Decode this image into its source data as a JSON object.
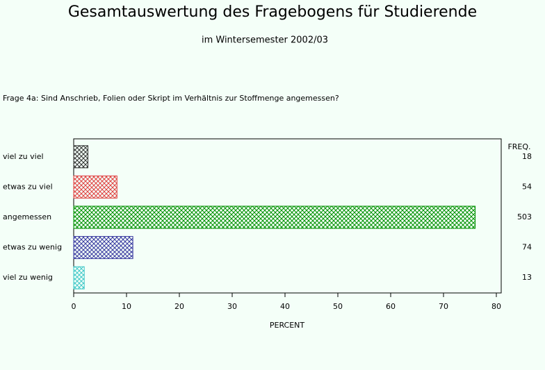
{
  "chart_data": {
    "type": "hbar",
    "title": "Gesamtauswertung des Fragebogens für Studierende",
    "subtitle": "im Wintersemester 2002/03",
    "question": "Frage 4a: Sind Anschrieb, Folien oder Skript im Verhältnis zur Stoffmenge angemessen?",
    "xlabel": "PERCENT",
    "categories": [
      "viel zu viel",
      "etwas zu viel",
      "angemessen",
      "etwas zu wenig",
      "viel zu wenig"
    ],
    "values": [
      2.7,
      8.2,
      76.0,
      11.2,
      2.0
    ],
    "colors": [
      "#303030",
      "#e04040",
      "#009000",
      "#3838a0",
      "#40c8c8"
    ],
    "freq_label": "FREQ.",
    "freq": [
      18,
      54,
      503,
      74,
      13
    ],
    "xlim": [
      0,
      80
    ],
    "xticks": [
      0,
      10,
      20,
      30,
      40,
      50,
      60,
      70,
      80
    ]
  }
}
